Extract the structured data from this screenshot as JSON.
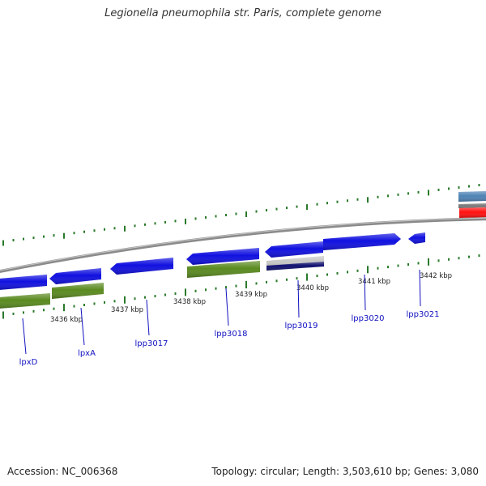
{
  "title": "Legionella pneumophila str. Paris, complete genome",
  "accession": "Accession: NC_006368",
  "summary": "Topology: circular; Length: 3,503,610 bp; Genes: 3,080",
  "colors": {
    "cds": "#1010e0",
    "cds_green": "#5a8a20",
    "cds_navy": "#101070",
    "cds_gray": "#c8c8c8",
    "cds_steel": "#4f83b5",
    "cds_red": "#ff1010",
    "tick": "#2a7a2a",
    "backbone": "#8a8a8a",
    "label": "#1010c0",
    "kbp_label": "#222222"
  },
  "scale_labels": [
    "3436 kbp",
    "3437 kbp",
    "3438 kbp",
    "3439 kbp",
    "3440 kbp",
    "3441 kbp",
    "3442 kbp"
  ],
  "gene_labels": [
    "lpxD",
    "lpxA",
    "lpp3017",
    "lpp3018",
    "lpp3019",
    "lpp3020",
    "lpp3021"
  ]
}
